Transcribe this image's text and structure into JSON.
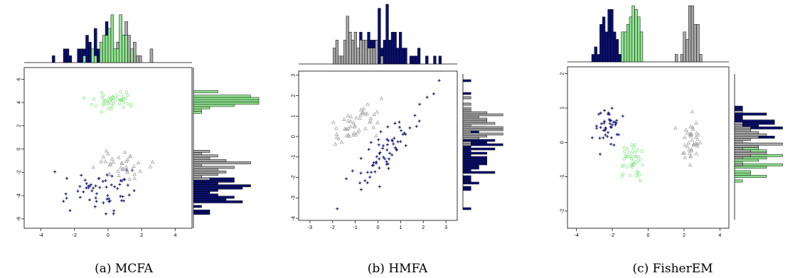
{
  "colors": {
    "cluster1": "#0a0f6e",
    "cluster2": "#a8a8a8",
    "cluster3": "#8fe48f",
    "axis": "#000000"
  },
  "chart_data": [
    {
      "type": "scatter",
      "caption": "(a) MCFA",
      "xlim": [
        -5,
        5
      ],
      "ylim": [
        -6.8,
        7
      ],
      "x_ticks": [
        -4,
        -2,
        0,
        2,
        4
      ],
      "y_ticks": [
        -6,
        -4,
        -2,
        0,
        2,
        4,
        6
      ],
      "marginals": true,
      "clusters": [
        {
          "marker": "plus",
          "color": "#0a0f6e",
          "center": [
            -0.6,
            -3.6
          ],
          "spread": [
            1.15,
            0.85
          ],
          "n": 60
        },
        {
          "marker": "triangle",
          "color": "#a8a8a8",
          "center": [
            0.9,
            -1.4
          ],
          "spread": [
            0.85,
            0.55
          ],
          "n": 38
        },
        {
          "marker": "circle",
          "color": "#8fe48f",
          "center": [
            0.2,
            4.1
          ],
          "spread": [
            0.65,
            0.35
          ],
          "n": 48
        }
      ]
    },
    {
      "type": "scatter",
      "caption": "(b) HMFA",
      "xlim": [
        -3.5,
        3.5
      ],
      "ylim": [
        -4.1,
        3.2
      ],
      "x_ticks": [
        -3,
        -2,
        -1,
        0,
        1,
        2,
        3
      ],
      "y_ticks": [
        -4,
        -3,
        -2,
        -1,
        0,
        1,
        2,
        3
      ],
      "marginals": true,
      "clusters": [
        {
          "marker": "plus",
          "color": "#0a0f6e",
          "center": [
            0.5,
            -0.6
          ],
          "spread": [
            0.75,
            1.0
          ],
          "corr": 0.82,
          "n": 70
        },
        {
          "marker": "triangle",
          "color": "#a8a8a8",
          "center": [
            -0.9,
            0.7
          ],
          "spread": [
            0.45,
            0.5
          ],
          "corr": 0.55,
          "n": 48
        }
      ]
    },
    {
      "type": "scatter",
      "caption": "(c) FisherEM",
      "xlim": [
        -4.5,
        4.5
      ],
      "ylim": [
        -2.5,
        2.2
      ],
      "x_ticks": [
        -4,
        -2,
        0,
        2,
        4
      ],
      "y_ticks": [
        -2,
        -1,
        0,
        1,
        2
      ],
      "marginals": true,
      "clusters": [
        {
          "marker": "plus",
          "color": "#0a0f6e",
          "center": [
            -2.2,
            0.45
          ],
          "spread": [
            0.4,
            0.3
          ],
          "n": 42
        },
        {
          "marker": "circle",
          "color": "#8fe48f",
          "center": [
            -0.9,
            -0.6
          ],
          "spread": [
            0.3,
            0.3
          ],
          "n": 44
        },
        {
          "marker": "triangle",
          "color": "#a8a8a8",
          "center": [
            2.4,
            0.1
          ],
          "spread": [
            0.3,
            0.3
          ],
          "n": 40
        }
      ]
    }
  ]
}
